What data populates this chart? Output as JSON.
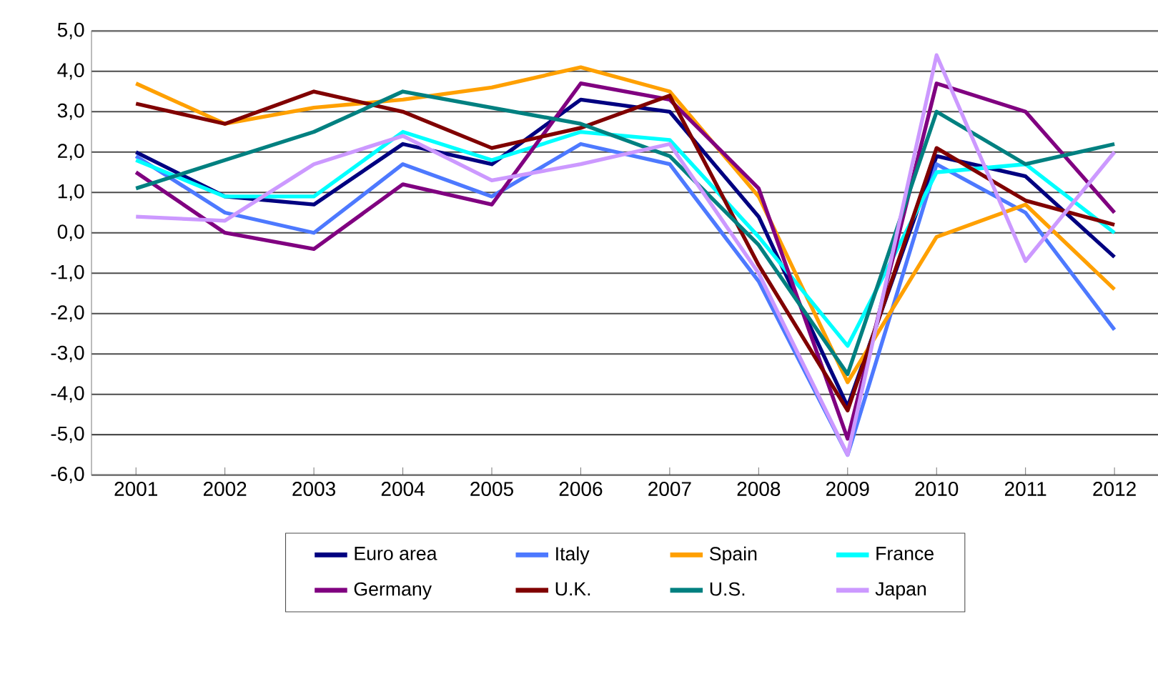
{
  "chart_data": {
    "type": "line",
    "categories": [
      "2001",
      "2002",
      "2003",
      "2004",
      "2005",
      "2006",
      "2007",
      "2008",
      "2009",
      "2010",
      "2011",
      "2012"
    ],
    "ylim": [
      -6,
      5
    ],
    "yticks": [
      {
        "value": -6,
        "label": "-6,0"
      },
      {
        "value": -5,
        "label": "-5,0"
      },
      {
        "value": -4,
        "label": "-4,0"
      },
      {
        "value": -3,
        "label": "-3,0"
      },
      {
        "value": -2,
        "label": "-2,0"
      },
      {
        "value": -1,
        "label": "-1,0"
      },
      {
        "value": 0,
        "label": "0,0"
      },
      {
        "value": 1,
        "label": "1,0"
      },
      {
        "value": 2,
        "label": "2,0"
      },
      {
        "value": 3,
        "label": "3,0"
      },
      {
        "value": 4,
        "label": "4,0"
      },
      {
        "value": 5,
        "label": "5,0"
      }
    ],
    "grid": "y",
    "legend": "bottom",
    "marker": "none",
    "line_style": "solid",
    "series": [
      {
        "name": "Euro area",
        "color": "#000080",
        "values": [
          2.0,
          0.9,
          0.7,
          2.2,
          1.7,
          3.3,
          3.0,
          0.4,
          -4.3,
          1.9,
          1.4,
          -0.6
        ]
      },
      {
        "name": "Italy",
        "color": "#4d79ff",
        "values": [
          1.9,
          0.5,
          0.0,
          1.7,
          0.9,
          2.2,
          1.7,
          -1.2,
          -5.5,
          1.7,
          0.5,
          -2.4
        ]
      },
      {
        "name": "Spain",
        "color": "#ffa000",
        "values": [
          3.7,
          2.7,
          3.1,
          3.3,
          3.6,
          4.1,
          3.5,
          0.9,
          -3.7,
          -0.1,
          0.7,
          -1.4
        ]
      },
      {
        "name": "France",
        "color": "#00ffff",
        "values": [
          1.8,
          0.9,
          0.9,
          2.5,
          1.8,
          2.5,
          2.3,
          -0.1,
          -2.8,
          1.5,
          1.7,
          0.0
        ]
      },
      {
        "name": "Germany",
        "color": "#800080",
        "values": [
          1.5,
          0.0,
          -0.4,
          1.2,
          0.7,
          3.7,
          3.3,
          1.1,
          -5.1,
          3.7,
          3.0,
          0.5
        ]
      },
      {
        "name": "U.K.",
        "color": "#800000",
        "values": [
          3.2,
          2.7,
          3.5,
          3.0,
          2.1,
          2.6,
          3.4,
          -0.8,
          -4.4,
          2.1,
          0.8,
          0.2
        ]
      },
      {
        "name": "U.S.",
        "color": "#008080",
        "values": [
          1.1,
          1.8,
          2.5,
          3.5,
          3.1,
          2.7,
          1.9,
          -0.3,
          -3.5,
          3.0,
          1.7,
          2.2
        ]
      },
      {
        "name": "Japan",
        "color": "#cc99ff",
        "values": [
          0.4,
          0.3,
          1.7,
          2.4,
          1.3,
          1.7,
          2.2,
          -1.0,
          -5.5,
          4.4,
          -0.7,
          2.0
        ]
      }
    ]
  }
}
